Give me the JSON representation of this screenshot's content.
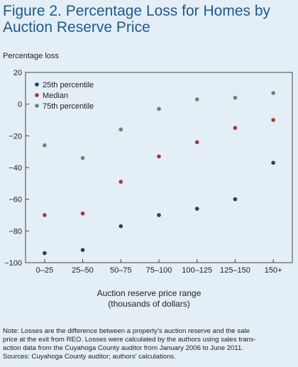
{
  "title": "Figure 2. Percentage Loss for Homes by Auction Reserve Price",
  "note_lines": [
    "Note: Losses are the difference between a property’s auction reserve and the sale",
    "price at the exit from REO. Losses were calculated by the authors using sales trans-",
    "action data from the Cuyahoga County auditor from January 2006 to June 2011.",
    "Sources: Cuyahoga County auditor; authors’ calculations."
  ],
  "chart_data": {
    "type": "scatter",
    "ylabel": "Percentage loss",
    "xlabel_lines": [
      "Auction reserve  price range",
      "(thousands of dollars)"
    ],
    "categories": [
      "0–25",
      "25–50",
      "50–75",
      "75–100",
      "100–125",
      "125–150",
      "150+"
    ],
    "ylim": [
      -100,
      20
    ],
    "yticks": [
      20,
      0,
      -20,
      -40,
      -60,
      -80,
      -100
    ],
    "legend_position": "top-left",
    "series": [
      {
        "name": "25th percentile",
        "color": "#1b4563",
        "values": [
          -94,
          -92,
          -77,
          -70,
          -66,
          -60,
          -37
        ]
      },
      {
        "name": "Median",
        "color": "#a3393b",
        "values": [
          -70,
          -69,
          -49,
          -33,
          -24,
          -15,
          -10
        ]
      },
      {
        "name": "75th percentile",
        "color": "#5f8b76",
        "values": [
          -26,
          -34,
          -16,
          -3,
          3,
          4,
          7
        ]
      }
    ]
  }
}
